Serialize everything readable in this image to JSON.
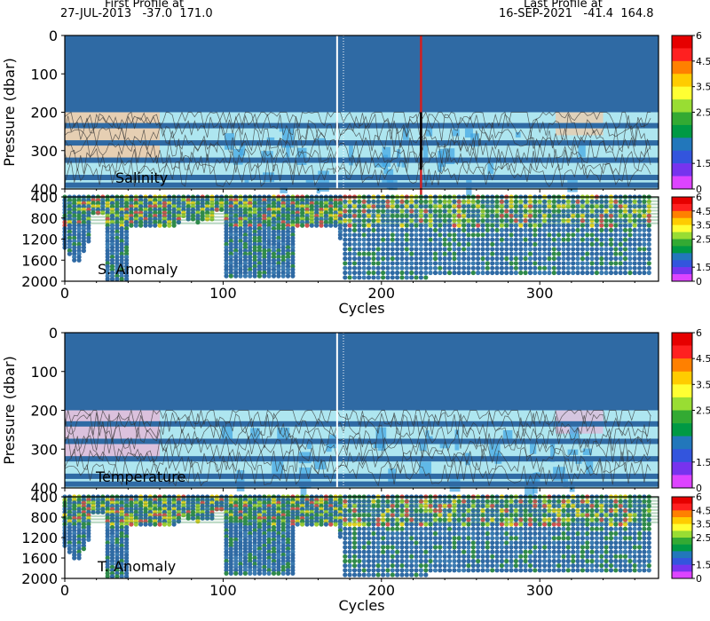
{
  "header": {
    "first_label": "First Profile at",
    "first_value": "27-JUL-2013   -37.0  171.0",
    "last_label": "Last Profile at",
    "last_value": "16-SEP-2021   -41.4  164.8"
  },
  "colorbar": {
    "ticks": [
      "6",
      "4.5",
      "3.5",
      "2.5",
      "1.5",
      "0"
    ],
    "colors": [
      "#e60000",
      "#ff2020",
      "#ff8000",
      "#ffcc00",
      "#ffff33",
      "#99dd33",
      "#33aa33",
      "#009944",
      "#2277bb",
      "#3355dd",
      "#7733ee",
      "#dd44ff"
    ]
  },
  "chart_data": [
    {
      "type": "heatmap",
      "title": "",
      "panel_label": "Salinity",
      "ylabel": "Pressure (dbar)",
      "xlabel": "",
      "ylim": [
        400,
        0
      ],
      "xlim": [
        0,
        375
      ],
      "yticks": [
        "0",
        "100",
        "200",
        "300",
        "400"
      ],
      "xticks": [
        "0",
        "100",
        "200",
        "300"
      ],
      "highlight_cycle": 225
    },
    {
      "type": "scatter",
      "panel_label": "S. Anomaly",
      "ylabel": "",
      "xlabel": "Cycles",
      "ylim": [
        2000,
        400
      ],
      "xlim": [
        0,
        375
      ],
      "yticks": [
        "400",
        "800",
        "1200",
        "1600",
        "2000"
      ],
      "xticks": [
        "0",
        "100",
        "200",
        "300"
      ]
    },
    {
      "type": "heatmap",
      "panel_label": "Temperature",
      "ylabel": "Pressure (dbar)",
      "xlabel": "",
      "ylim": [
        400,
        0
      ],
      "xlim": [
        0,
        375
      ],
      "yticks": [
        "0",
        "100",
        "200",
        "300",
        "400"
      ],
      "xticks": [
        "0",
        "100",
        "200",
        "300"
      ]
    },
    {
      "type": "scatter",
      "panel_label": "T. Anomaly",
      "ylabel": "",
      "xlabel": "Cycles",
      "ylim": [
        2000,
        400
      ],
      "xlim": [
        0,
        375
      ],
      "yticks": [
        "400",
        "800",
        "1200",
        "1600",
        "2000"
      ],
      "xticks": [
        "0",
        "100",
        "200",
        "300"
      ]
    }
  ]
}
